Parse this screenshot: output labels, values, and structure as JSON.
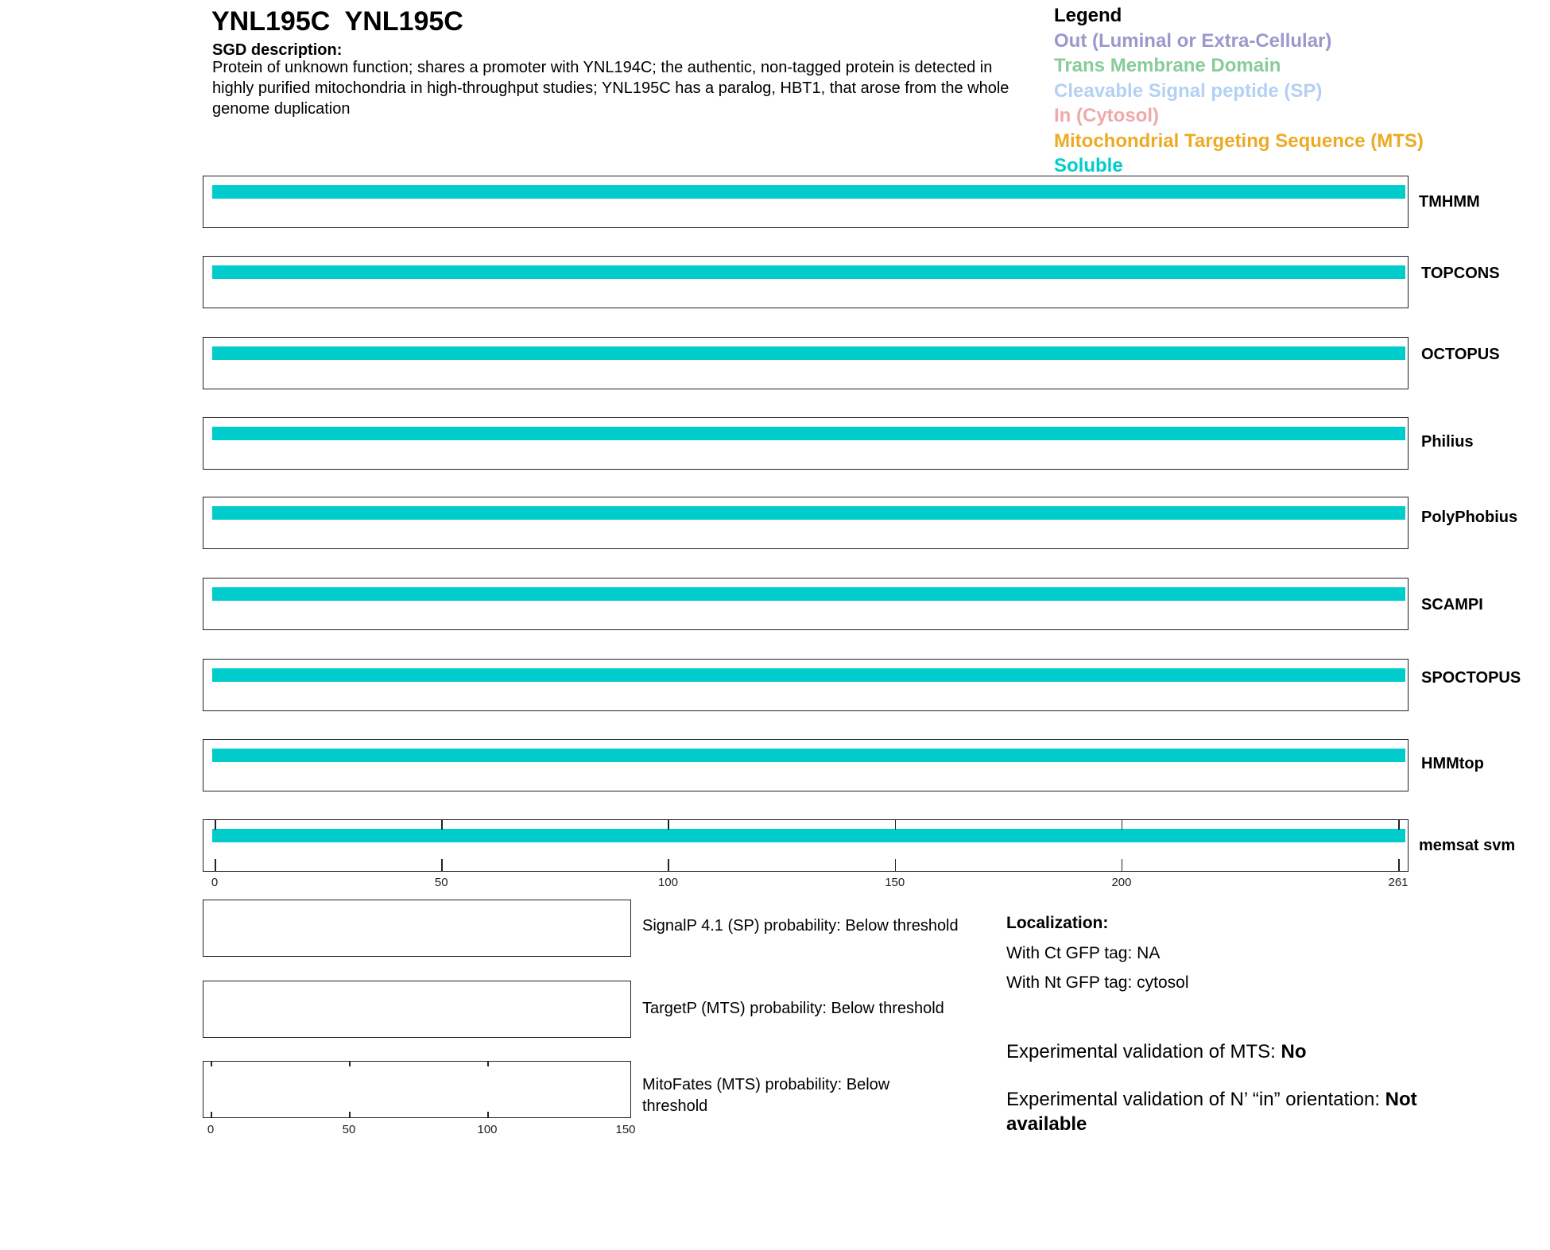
{
  "header": {
    "title": "YNL195C  YNL195C",
    "description_heading": "SGD description:",
    "description": "Protein of unknown function; shares a promoter with YNL194C; the authentic, non-tagged protein is detected in highly purified mitochondria in high-throughput studies; YNL195C has a paralog, HBT1, that arose from the whole genome duplication"
  },
  "legend": {
    "title": "Legend",
    "items": [
      {
        "label": "Out (Luminal or Extra-Cellular)",
        "color": "#9999cc"
      },
      {
        "label": "Trans Membrane Domain",
        "color": "#88cc99"
      },
      {
        "label": "Cleavable Signal peptide (SP)",
        "color": "#b3d1f2"
      },
      {
        "label": "In (Cytosol)",
        "color": "#eeaaaa"
      },
      {
        "label": "Mitochondrial Targeting Sequence (MTS)",
        "color": "#eeaa22"
      },
      {
        "label": "Soluble",
        "color": "#00cccc"
      }
    ]
  },
  "chart_data": {
    "type": "bar",
    "sequence_length": 261,
    "x_ticks": [
      0,
      50,
      100,
      150,
      200,
      261
    ],
    "tracks": [
      {
        "name": "TMHMM",
        "segments": [
          {
            "start": 0,
            "end": 261,
            "type": "Soluble"
          }
        ]
      },
      {
        "name": "TOPCONS",
        "segments": [
          {
            "start": 0,
            "end": 261,
            "type": "Soluble"
          }
        ]
      },
      {
        "name": "OCTOPUS",
        "segments": [
          {
            "start": 0,
            "end": 261,
            "type": "Soluble"
          }
        ]
      },
      {
        "name": "Philius",
        "segments": [
          {
            "start": 0,
            "end": 261,
            "type": "Soluble"
          }
        ]
      },
      {
        "name": "PolyPhobius",
        "segments": [
          {
            "start": 0,
            "end": 261,
            "type": "Soluble"
          }
        ]
      },
      {
        "name": "SCAMPI",
        "segments": [
          {
            "start": 0,
            "end": 261,
            "type": "Soluble"
          }
        ]
      },
      {
        "name": "SPOCTOPUS",
        "segments": [
          {
            "start": 0,
            "end": 261,
            "type": "Soluble"
          }
        ]
      },
      {
        "name": "HMMtop",
        "segments": [
          {
            "start": 0,
            "end": 261,
            "type": "Soluble"
          }
        ]
      },
      {
        "name": "memsat svm",
        "segments": [
          {
            "start": 0,
            "end": 261,
            "type": "Soluble"
          }
        ]
      }
    ],
    "probability_panels": [
      {
        "label": "SignalP 4.1 (SP) probability: Below threshold"
      },
      {
        "label": "TargetP (MTS) probability: Below threshold"
      },
      {
        "label": "MitoFates (MTS) probability: Below threshold",
        "x_ticks": [
          0,
          50,
          100,
          150
        ],
        "xlim": [
          0,
          150
        ]
      }
    ]
  },
  "localization": {
    "heading": "Localization:",
    "ct": "With Ct GFP tag: NA",
    "nt": "With Nt GFP tag: cytosol"
  },
  "experimental": {
    "mts_label": "Experimental validation of MTS: ",
    "mts_value": "No",
    "orient_label": "Experimental validation of N’ “in” orientation: ",
    "orient_value": "Not available"
  }
}
